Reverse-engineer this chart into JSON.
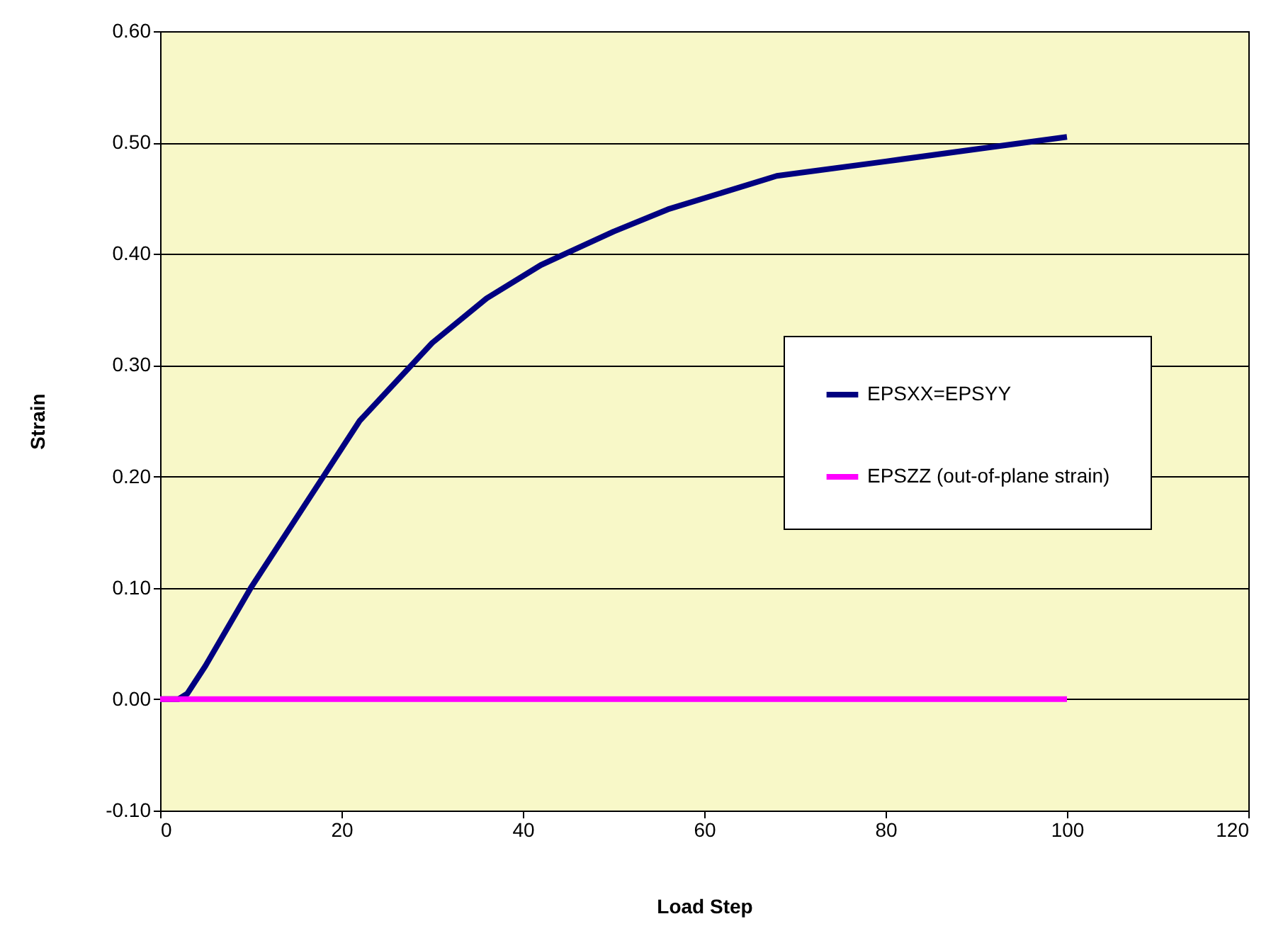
{
  "chart_data": {
    "type": "line",
    "xlabel": "Load Step",
    "ylabel": "Strain",
    "xlim": [
      0,
      120
    ],
    "xticks": [
      0,
      20,
      40,
      60,
      80,
      100,
      120
    ],
    "ylim": [
      -0.1,
      0.6
    ],
    "yticks": [
      {
        "value": -0.1,
        "label": "-0.10"
      },
      {
        "value": 0,
        "label": "0.00"
      },
      {
        "value": 0.1,
        "label": "0.10"
      },
      {
        "value": 0.2,
        "label": "0.20"
      },
      {
        "value": 0.3,
        "label": "0.30"
      },
      {
        "value": 0.4,
        "label": "0.40"
      },
      {
        "value": 0.5,
        "label": "0.50"
      },
      {
        "value": 0.6,
        "label": "0.60"
      }
    ],
    "grid": "y",
    "legend": "right",
    "marker": "none",
    "line_style": "solid",
    "series": [
      {
        "name": "EPSXX=EPSYY",
        "color": "#000080",
        "x": [
          0,
          2,
          3,
          5,
          10,
          18,
          22,
          26,
          30,
          36,
          42,
          46,
          50,
          56,
          62,
          68,
          80,
          90,
          100
        ],
        "values": [
          0,
          0,
          0.005,
          0.03,
          0.1,
          0.2,
          0.25,
          0.285,
          0.32,
          0.36,
          0.39,
          0.405,
          0.42,
          0.44,
          0.455,
          0.47,
          0.483,
          0.494,
          0.505
        ]
      },
      {
        "name": "EPSZZ (out-of-plane strain)",
        "color": "#ff00ff",
        "x": [
          0,
          100
        ],
        "values": [
          0,
          0
        ]
      }
    ]
  }
}
